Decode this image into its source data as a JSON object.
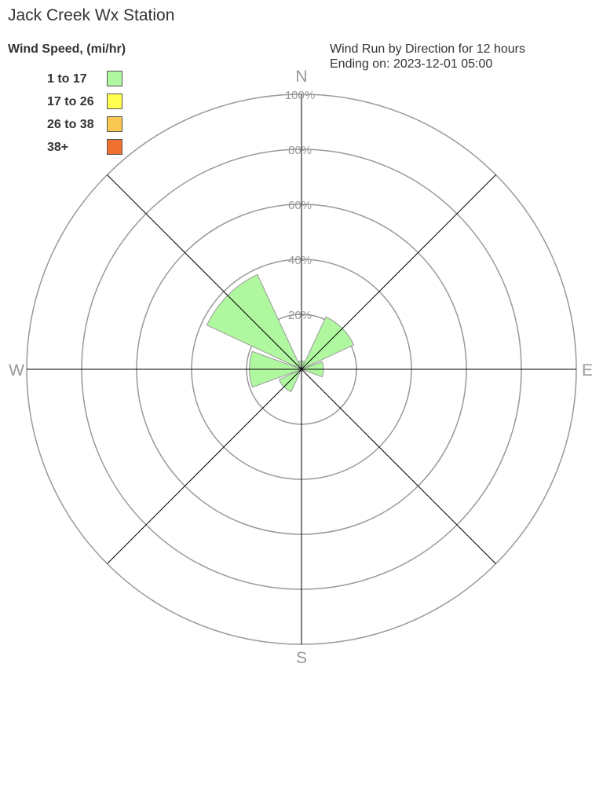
{
  "chart_data": {
    "type": "windrose",
    "title": "Jack Creek Wx Station",
    "subtitle": [
      "Wind Run by Direction for 12 hours",
      "Ending on: 2023-12-01 05:00"
    ],
    "legend_title": "Wind Speed, (mi/hr)",
    "legend_placement": "top-left",
    "legend": [
      {
        "label": "1 to 17",
        "color": "#b0f8a0"
      },
      {
        "label": "17 to 26",
        "color": "#ffff50"
      },
      {
        "label": "26 to 38",
        "color": "#f8c850"
      },
      {
        "label": "38+",
        "color": "#f07030"
      }
    ],
    "directions": [
      "N",
      "NE",
      "E",
      "SE",
      "S",
      "SW",
      "W",
      "NW"
    ],
    "compass_labels": {
      "N": "N",
      "E": "E",
      "S": "S",
      "W": "W"
    },
    "radial_ticks": [
      "20%",
      "40%",
      "60%",
      "80%",
      "100%"
    ],
    "rlim": [
      0,
      100
    ],
    "series": [
      {
        "name": "1 to 17",
        "values": [
          3,
          21,
          8,
          0,
          0,
          9,
          19,
          38
        ]
      }
    ]
  }
}
